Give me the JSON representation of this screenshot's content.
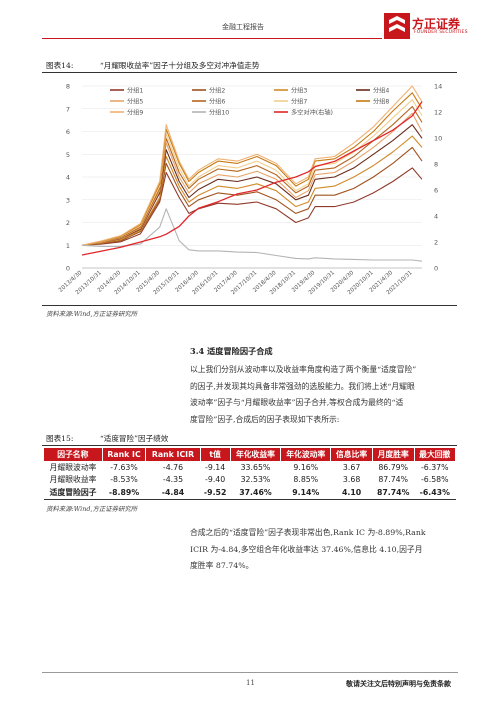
{
  "header": {
    "title": "金融工程报告",
    "brand_name": "方正证券",
    "brand_en": "FOUNDER SECURITIES"
  },
  "figure14": {
    "caption_label": "图表14:",
    "caption_text": "“月耀眼收益率”因子十分组及多空对冲净值走势",
    "source": "资料来源:Wind,方正证券研究所"
  },
  "chart_data": {
    "type": "line",
    "title": "",
    "xlabel": "",
    "ylabel": "",
    "ylabel_right": "",
    "ylim": [
      0,
      8
    ],
    "ylim_right": [
      0,
      14
    ],
    "yticks_left": [
      "0",
      "1",
      "2",
      "3",
      "4",
      "5",
      "6",
      "7",
      "8"
    ],
    "yticks_right": [
      "0",
      "2",
      "4",
      "6",
      "8",
      "10",
      "12",
      "14"
    ],
    "x_tick_labels": [
      "2013/4/30",
      "2013/10/31",
      "2014/4/30",
      "2014/10/31",
      "2015/4/30",
      "2015/10/31",
      "2016/4/30",
      "2016/10/31",
      "2017/4/30",
      "2017/10/31",
      "2018/4/30",
      "2018/10/31",
      "2019/4/30",
      "2019/10/31",
      "2020/4/30",
      "2020/10/31",
      "2021/4/30",
      "2021/10/31"
    ],
    "x": [
      "2013/4/30",
      "2013/10/31",
      "2014/4/30",
      "2014/10/31",
      "2015/4/30",
      "2015/6/30",
      "2015/10/31",
      "2016/1/31",
      "2016/4/30",
      "2016/10/31",
      "2017/4/30",
      "2017/10/31",
      "2018/4/30",
      "2018/10/31",
      "2019/2/28",
      "2019/4/30",
      "2019/10/31",
      "2020/4/30",
      "2020/10/31",
      "2021/4/30",
      "2021/10/31",
      "2022/1/31"
    ],
    "grid": true,
    "legend_position": "top",
    "series": [
      {
        "name": "分组1",
        "color": "#8f3b2a",
        "axis": "left",
        "values": [
          1,
          1.05,
          1.15,
          1.5,
          2.9,
          4.2,
          3.1,
          2.4,
          2.6,
          2.85,
          2.8,
          2.9,
          2.6,
          2.0,
          2.2,
          2.7,
          2.7,
          2.9,
          3.3,
          3.8,
          4.4,
          3.9
        ]
      },
      {
        "name": "分组2",
        "color": "#a0521d",
        "axis": "left",
        "values": [
          1,
          1.08,
          1.2,
          1.6,
          3.0,
          4.6,
          3.4,
          2.7,
          3.0,
          3.3,
          3.2,
          3.35,
          3.0,
          2.4,
          2.6,
          3.2,
          3.2,
          3.5,
          4.0,
          4.6,
          5.3,
          4.7
        ]
      },
      {
        "name": "分组3",
        "color": "#d08a2a",
        "axis": "left",
        "values": [
          1,
          1.1,
          1.25,
          1.65,
          3.1,
          4.9,
          3.6,
          2.9,
          3.2,
          3.6,
          3.5,
          3.7,
          3.4,
          2.7,
          2.9,
          3.5,
          3.6,
          4.0,
          4.5,
          5.1,
          5.8,
          5.3
        ]
      },
      {
        "name": "分组4",
        "color": "#6a2b1c",
        "axis": "left",
        "values": [
          1,
          1.12,
          1.3,
          1.7,
          3.3,
          5.2,
          3.8,
          3.1,
          3.45,
          3.9,
          3.8,
          4.0,
          3.7,
          3.0,
          3.2,
          3.9,
          4.0,
          4.4,
          5.0,
          5.6,
          6.3,
          5.7
        ]
      },
      {
        "name": "分组5",
        "color": "#e6a36a",
        "axis": "left",
        "values": [
          1,
          1.13,
          1.32,
          1.75,
          3.4,
          5.5,
          4.0,
          3.3,
          3.7,
          4.1,
          4.0,
          4.25,
          3.9,
          3.1,
          3.4,
          4.1,
          4.2,
          4.7,
          5.3,
          6.0,
          6.8,
          6.0
        ]
      },
      {
        "name": "分组6",
        "color": "#b5651d",
        "axis": "left",
        "values": [
          1,
          1.15,
          1.35,
          1.8,
          3.5,
          5.7,
          4.2,
          3.5,
          3.9,
          4.35,
          4.25,
          4.5,
          4.1,
          3.3,
          3.6,
          4.3,
          4.4,
          4.9,
          5.6,
          6.3,
          7.1,
          6.4
        ]
      },
      {
        "name": "分组7",
        "color": "#f2cf8e",
        "axis": "left",
        "values": [
          1,
          1.16,
          1.38,
          1.85,
          3.6,
          5.9,
          4.4,
          3.6,
          4.0,
          4.5,
          4.4,
          4.7,
          4.3,
          3.4,
          3.7,
          4.5,
          4.6,
          5.1,
          5.8,
          6.6,
          7.4,
          6.7
        ]
      },
      {
        "name": "分组8",
        "color": "#c77a12",
        "axis": "left",
        "values": [
          1,
          1.18,
          1.4,
          1.9,
          3.7,
          6.1,
          4.6,
          3.8,
          4.2,
          4.7,
          4.6,
          4.9,
          4.5,
          3.6,
          3.9,
          4.7,
          4.8,
          5.3,
          6.0,
          6.9,
          7.7,
          7.0
        ]
      },
      {
        "name": "分组9",
        "color": "#f0b070",
        "axis": "left",
        "values": [
          1,
          1.19,
          1.42,
          1.95,
          3.8,
          6.3,
          4.7,
          3.9,
          4.3,
          4.8,
          4.7,
          5.0,
          4.6,
          3.7,
          4.0,
          4.8,
          4.9,
          5.5,
          6.2,
          7.1,
          8.0,
          7.3
        ]
      },
      {
        "name": "分组10",
        "color": "#b4b4b4",
        "axis": "left",
        "values": [
          1,
          0.95,
          0.95,
          1.05,
          1.8,
          2.6,
          1.2,
          0.8,
          0.75,
          0.75,
          0.7,
          0.68,
          0.55,
          0.42,
          0.4,
          0.45,
          0.4,
          0.38,
          0.35,
          0.35,
          0.35,
          0.3
        ]
      },
      {
        "name": "多空对冲(右轴)",
        "color": "#e1262b",
        "axis": "right",
        "values": [
          1,
          1.3,
          1.6,
          2.0,
          2.4,
          2.6,
          3.2,
          4.0,
          4.6,
          5.1,
          5.7,
          6.0,
          6.6,
          7.0,
          7.4,
          7.8,
          8.2,
          9.0,
          9.8,
          10.6,
          11.7,
          12.8
        ]
      }
    ]
  },
  "section": {
    "title": "3.4  适度冒险因子合成"
  },
  "paragraph1": {
    "lines": [
      "以上我们分别从波动率以及收益率角度构造了两个衡量“适度冒险”",
      "的因子,并发现其均具备非常强劲的选股能力。我们将上述“月耀眼",
      "波动率”因子与“月耀眼收益率”因子合并,等权合成为最终的“适",
      "度冒险”因子,合成后的因子表现如下表所示:"
    ]
  },
  "figure15": {
    "caption_label": "图表15:",
    "caption_text": "“适度冒险”因子绩效",
    "source": "资料来源:Wind,方正证券研究所"
  },
  "table": {
    "headers": [
      "因子名称",
      "Rank IC",
      "Rank ICIR",
      "t值",
      "年化收益率",
      "年化波动率",
      "信息比率",
      "月度胜率",
      "最大回撤"
    ],
    "rows": [
      [
        "月耀眼波动率",
        "-7.63%",
        "-4.76",
        "-9.14",
        "33.65%",
        "9.16%",
        "3.67",
        "86.79%",
        "-6.37%"
      ],
      [
        "月耀眼收益率",
        "-8.53%",
        "-4.35",
        "-9.40",
        "32.53%",
        "8.85%",
        "3.68",
        "87.74%",
        "-6.58%"
      ],
      [
        "适度冒险因子",
        "-8.89%",
        "-4.84",
        "-9.52",
        "37.46%",
        "9.14%",
        "4.10",
        "87.74%",
        "-6.43%"
      ]
    ]
  },
  "paragraph2": {
    "lines": [
      "合成之后的“适度冒险”因子表现非常出色,Rank IC 为-8.89%,Rank",
      "ICIR 为-4.84,多空组合年化收益率达 37.46%,信息比 4.10,因子月",
      "度胜率 87.74%。"
    ]
  },
  "footer": {
    "page_number": "11",
    "disclaimer": "敬请关注文后特别声明与免责条款"
  }
}
